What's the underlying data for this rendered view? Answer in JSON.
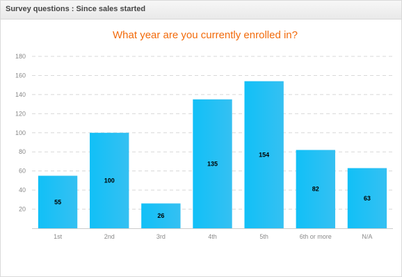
{
  "panel": {
    "header_title": "Survey questions : Since sales started"
  },
  "colors": {
    "bar_left": "#11c0f7",
    "bar_right": "#35c0f2",
    "title": "#f26a0a",
    "grid": "#d8d8d8",
    "axis_text": "#888888",
    "label_text": "#000000"
  },
  "chart_data": {
    "type": "bar",
    "title": "What year are you currently enrolled in?",
    "xlabel": "",
    "ylabel": "",
    "categories": [
      "1st",
      "2nd",
      "3rd",
      "4th",
      "5th",
      "6th or more",
      "N/A"
    ],
    "values": [
      55,
      100,
      26,
      135,
      154,
      82,
      63
    ],
    "data_labels": [
      "55",
      "100",
      "26",
      "135",
      "154",
      "82",
      "63"
    ],
    "ylim": [
      0,
      180
    ],
    "yticks": [
      20,
      40,
      60,
      80,
      100,
      120,
      140,
      160,
      180
    ],
    "grid": true,
    "legend": "none"
  }
}
